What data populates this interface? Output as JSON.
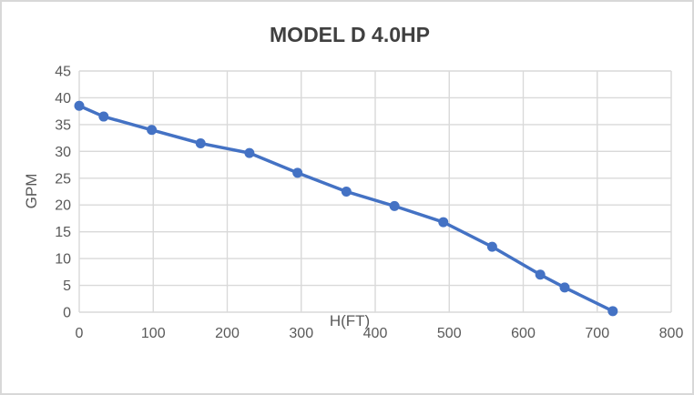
{
  "chart_data": {
    "type": "line",
    "title": "MODEL D 4.0HP",
    "xlabel": "H(FT)",
    "ylabel": "GPM",
    "xlim": [
      0,
      800
    ],
    "ylim": [
      0,
      45
    ],
    "x_ticks": [
      0,
      100,
      200,
      300,
      400,
      500,
      600,
      700,
      800
    ],
    "y_ticks": [
      0,
      5,
      10,
      15,
      20,
      25,
      30,
      35,
      40,
      45
    ],
    "grid": true,
    "legend": false,
    "series": [
      {
        "marker": "circle",
        "color": "#4472C4",
        "x": [
          0,
          33,
          98,
          164,
          230,
          295,
          361,
          426,
          492,
          558,
          623,
          656,
          721
        ],
        "y": [
          38.5,
          36.5,
          34,
          31.5,
          29.7,
          26,
          22.5,
          19.8,
          16.8,
          12.2,
          7,
          4.6,
          0.2
        ]
      }
    ],
    "colors": {
      "series_line": "#4472C4",
      "grid": "#D9D9D9",
      "axis_text": "#595959",
      "title_text": "#404040",
      "chart_border": "#D8D8D8",
      "background": "#FFFFFF"
    }
  }
}
